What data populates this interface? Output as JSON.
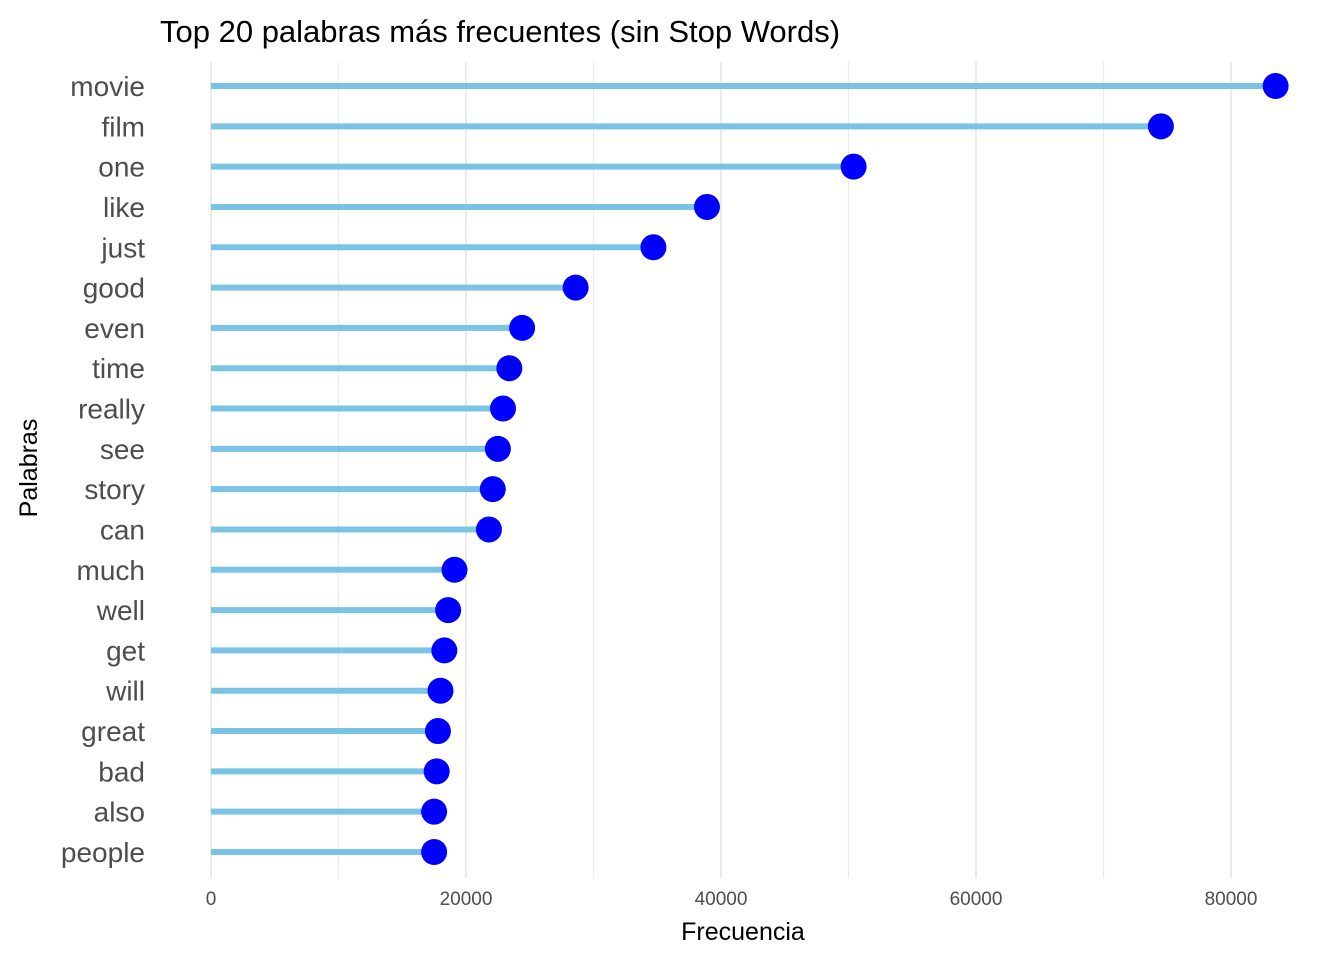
{
  "chart_data": {
    "type": "lollipop",
    "title": "Top 20 palabras más frecuentes (sin Stop Words)",
    "xlabel": "Frecuencia",
    "ylabel": "Palabras",
    "xlim": [
      0,
      85000
    ],
    "xticks": [
      0,
      20000,
      40000,
      60000,
      80000
    ],
    "xtick_labels": [
      "0",
      "20000",
      "40000",
      "60000",
      "80000"
    ],
    "grid": "vertical",
    "categories": [
      "movie",
      "film",
      "one",
      "like",
      "just",
      "good",
      "even",
      "time",
      "really",
      "see",
      "story",
      "can",
      "much",
      "well",
      "get",
      "will",
      "great",
      "bad",
      "also",
      "people"
    ],
    "values": [
      83500,
      74500,
      50400,
      38900,
      34700,
      28600,
      24400,
      23400,
      22900,
      22500,
      22100,
      21800,
      19100,
      18600,
      18300,
      18000,
      17800,
      17700,
      17500,
      17500
    ],
    "colors": {
      "stem": "#7ac3e5",
      "point": "#0000ff",
      "grid": "#ebebeb"
    }
  }
}
